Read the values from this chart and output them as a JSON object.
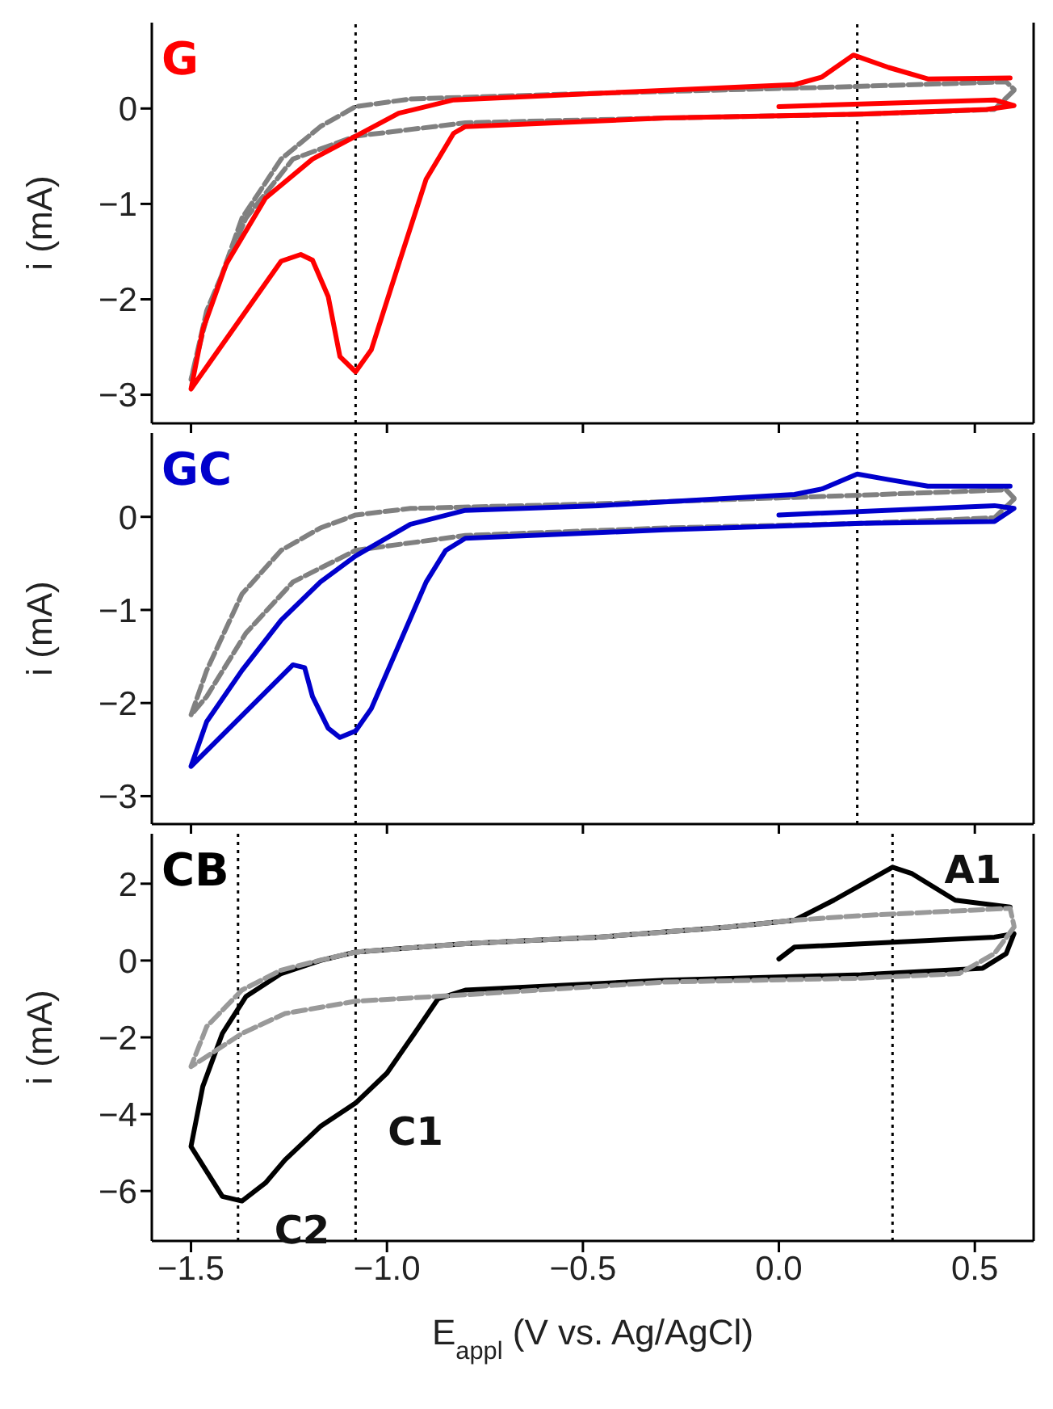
{
  "chart_data": [
    {
      "type": "line",
      "ylabel": "i (mA)",
      "xlim": [
        -1.6,
        0.65
      ],
      "ylim": [
        -3.3,
        0.9
      ],
      "xticks": [
        -1.5,
        -1,
        -0.5,
        0,
        0.5
      ],
      "yticks": [
        -3,
        -2,
        -1,
        0
      ],
      "tick_labels": "y",
      "annotations": [
        "G"
      ],
      "ref_lines": [
        {
          "axis": "x",
          "value": -1.08,
          "color": "#000000",
          "line_style": "dotted"
        },
        {
          "axis": "x",
          "value": 0.2,
          "color": "#000000",
          "line_style": "dotted"
        }
      ],
      "series": [
        {
          "color": "#808080",
          "line_style": "dashed",
          "x": [
            0.6,
            0.55,
            0.21,
            -0.29,
            -0.8,
            -1.08,
            -1.24,
            -1.36,
            -1.46,
            -1.5,
            -1.46,
            -1.37,
            -1.27,
            -1.17,
            -1.08,
            -0.94,
            -0.46,
            0.19,
            0.58,
            0.6
          ],
          "values": [
            0.19,
            -0.01,
            -0.06,
            -0.1,
            -0.15,
            -0.29,
            -0.53,
            -1.15,
            -2.12,
            -2.84,
            -2.19,
            -1.15,
            -0.53,
            -0.19,
            0.02,
            0.1,
            0.16,
            0.23,
            0.28,
            0.2
          ]
        },
        {
          "color": "#ff0000",
          "line_style": "solid",
          "x": [
            0.0,
            0.55,
            0.6,
            0.53,
            0.21,
            -0.29,
            -0.8,
            -0.83,
            -0.9,
            -0.97,
            -1.04,
            -1.08,
            -1.12,
            -1.15,
            -1.19,
            -1.22,
            -1.27,
            -1.5,
            -1.47,
            -1.41,
            -1.31,
            -1.19,
            -1.08,
            -0.97,
            -0.83,
            -0.46,
            0.04,
            0.11,
            0.19,
            0.28,
            0.38,
            0.59
          ],
          "values": [
            0.02,
            0.09,
            0.03,
            -0.01,
            -0.06,
            -0.1,
            -0.19,
            -0.26,
            -0.74,
            -1.63,
            -2.53,
            -2.76,
            -2.6,
            -1.97,
            -1.59,
            -1.53,
            -1.6,
            -2.94,
            -2.32,
            -1.63,
            -0.94,
            -0.53,
            -0.29,
            -0.05,
            0.09,
            0.16,
            0.25,
            0.33,
            0.56,
            0.43,
            0.31,
            0.32
          ]
        }
      ]
    },
    {
      "type": "line",
      "ylabel": "i (mA)",
      "xlim": [
        -1.6,
        0.65
      ],
      "ylim": [
        -3.3,
        0.9
      ],
      "xticks": [
        -1.5,
        -1,
        -0.5,
        0,
        0.5
      ],
      "yticks": [
        -3,
        -2,
        -1,
        0
      ],
      "tick_labels": "y",
      "annotations": [
        "GC"
      ],
      "ref_lines": [
        {
          "axis": "x",
          "value": -1.08,
          "color": "#000000",
          "line_style": "dotted"
        },
        {
          "axis": "x",
          "value": 0.2,
          "color": "#000000",
          "line_style": "dotted"
        }
      ],
      "series": [
        {
          "color": "#808080",
          "line_style": "dashed",
          "x": [
            0.6,
            0.55,
            0.21,
            -0.29,
            -0.8,
            -1.08,
            -1.24,
            -1.36,
            -1.46,
            -1.5,
            -1.46,
            -1.37,
            -1.27,
            -1.17,
            -1.08,
            -0.94,
            -0.46,
            0.19,
            0.58,
            0.6
          ],
          "values": [
            0.19,
            -0.01,
            -0.07,
            -0.12,
            -0.2,
            -0.36,
            -0.7,
            -1.25,
            -1.93,
            -2.13,
            -1.65,
            -0.83,
            -0.36,
            -0.12,
            0.02,
            0.09,
            0.14,
            0.23,
            0.29,
            0.2
          ]
        },
        {
          "color": "#0000cc",
          "line_style": "solid",
          "x": [
            0.0,
            0.55,
            0.6,
            0.55,
            0.21,
            -0.29,
            -0.8,
            -0.85,
            -0.9,
            -0.97,
            -1.04,
            -1.08,
            -1.12,
            -1.15,
            -1.19,
            -1.21,
            -1.24,
            -1.5,
            -1.46,
            -1.37,
            -1.27,
            -1.17,
            -1.08,
            -0.94,
            -0.8,
            -0.46,
            0.04,
            0.11,
            0.2,
            0.28,
            0.38,
            0.59
          ],
          "values": [
            0.02,
            0.12,
            0.09,
            -0.05,
            -0.07,
            -0.14,
            -0.23,
            -0.36,
            -0.7,
            -1.38,
            -2.06,
            -2.3,
            -2.37,
            -2.27,
            -1.93,
            -1.62,
            -1.59,
            -2.68,
            -2.2,
            -1.65,
            -1.11,
            -0.7,
            -0.42,
            -0.08,
            0.07,
            0.12,
            0.24,
            0.3,
            0.46,
            0.4,
            0.33,
            0.33
          ]
        }
      ]
    },
    {
      "type": "line",
      "xlabel": "E$_{appl}$ (V vs. Ag/AgCl)",
      "ylabel": "i (mA)",
      "xlim": [
        -1.6,
        0.65
      ],
      "ylim": [
        -7.3,
        3.3
      ],
      "xticks": [
        {
          "value": -1.5,
          "label": "−1.5"
        },
        {
          "value": -1,
          "label": "−1.0"
        },
        {
          "value": -0.5,
          "label": "−0.5"
        },
        {
          "value": 0,
          "label": "0.0"
        },
        {
          "value": 0.5,
          "label": "0.5"
        }
      ],
      "yticks": [
        -6,
        -4,
        -2,
        0,
        2
      ],
      "annotations": [
        "CB",
        {
          "text": "C1",
          "x": -1.08,
          "y": -3.71
        },
        {
          "text": "C2",
          "x": -1.37,
          "y": -6.26
        },
        {
          "text": "A1",
          "x": 0.34,
          "y": 2.26
        }
      ],
      "ref_lines": [
        {
          "axis": "x",
          "value": -1.38,
          "color": "#000000",
          "line_style": "dotted"
        },
        {
          "axis": "x",
          "value": -1.08,
          "color": "#000000",
          "line_style": "dotted"
        },
        {
          "axis": "x",
          "value": 0.29,
          "color": "#000000",
          "line_style": "dotted"
        }
      ],
      "series": [
        {
          "color": "#000000",
          "line_style": "solid",
          "x": [
            0.0,
            0.04,
            0.55,
            0.6,
            0.58,
            0.52,
            0.21,
            -0.29,
            -0.8,
            -0.87,
            -0.93,
            -1.0,
            -1.08,
            -1.17,
            -1.26,
            -1.31,
            -1.37,
            -1.42,
            -1.5,
            -1.47,
            -1.42,
            -1.36,
            -1.27,
            -1.17,
            -1.08,
            -0.8,
            -0.46,
            -0.13,
            0.04,
            0.14,
            0.29,
            0.34,
            0.45,
            0.59
          ],
          "values": [
            0.04,
            0.35,
            0.61,
            0.7,
            0.18,
            -0.2,
            -0.37,
            -0.51,
            -0.77,
            -1.0,
            -1.9,
            -2.93,
            -3.71,
            -4.32,
            -5.19,
            -5.79,
            -6.26,
            -6.14,
            -4.84,
            -3.28,
            -1.9,
            -0.94,
            -0.34,
            0.0,
            0.22,
            0.44,
            0.61,
            0.87,
            1.05,
            1.57,
            2.43,
            2.26,
            1.57,
            1.39
          ]
        },
        {
          "color": "#999999",
          "line_style": "dashed",
          "x": [
            0.6,
            0.55,
            0.46,
            0.21,
            -0.29,
            -0.8,
            -1.08,
            -1.26,
            -1.37,
            -1.46,
            -1.5,
            -1.46,
            -1.37,
            -1.27,
            -1.17,
            -1.08,
            -0.8,
            -0.46,
            -0.13,
            0.04,
            0.21,
            0.59,
            0.6
          ],
          "values": [
            0.87,
            0.18,
            -0.34,
            -0.46,
            -0.56,
            -0.89,
            -1.06,
            -1.38,
            -1.9,
            -2.5,
            -2.76,
            -1.72,
            -0.77,
            -0.25,
            0.01,
            0.22,
            0.44,
            0.61,
            0.87,
            1.05,
            1.17,
            1.36,
            0.9
          ]
        }
      ]
    }
  ]
}
